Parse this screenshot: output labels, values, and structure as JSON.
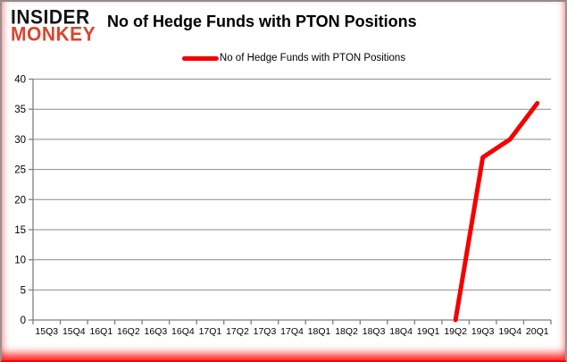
{
  "brand": {
    "line1": "INSIDER",
    "line2": "MONKEY"
  },
  "header": {
    "title": "No of Hedge Funds with PTON Positions"
  },
  "legend": {
    "label": "No of Hedge Funds with PTON Positions"
  },
  "colors": {
    "series_line": "#f40000",
    "grid_line": "#8c8c8c",
    "axis_line": "#808080",
    "tick_text": "#000000",
    "brand_black": "#141414",
    "brand_red": "#d9452e"
  },
  "chart_data": {
    "type": "line",
    "title": "No of Hedge Funds with PTON Positions",
    "categories": [
      "15Q3",
      "15Q4",
      "16Q1",
      "16Q2",
      "16Q3",
      "16Q4",
      "17Q1",
      "17Q2",
      "17Q3",
      "17Q4",
      "18Q1",
      "18Q2",
      "18Q3",
      "18Q4",
      "19Q1",
      "19Q2",
      "19Q3",
      "19Q4",
      "20Q1"
    ],
    "series": [
      {
        "name": "No of Hedge Funds with PTON Positions",
        "values": [
          null,
          null,
          null,
          null,
          null,
          null,
          null,
          null,
          null,
          null,
          null,
          null,
          null,
          null,
          null,
          0,
          27,
          30,
          36
        ]
      }
    ],
    "xlabel": "",
    "ylabel": "",
    "ylim": [
      0,
      40
    ],
    "ytick_step": 5,
    "grid": "horizontal",
    "legend_position": "top"
  }
}
